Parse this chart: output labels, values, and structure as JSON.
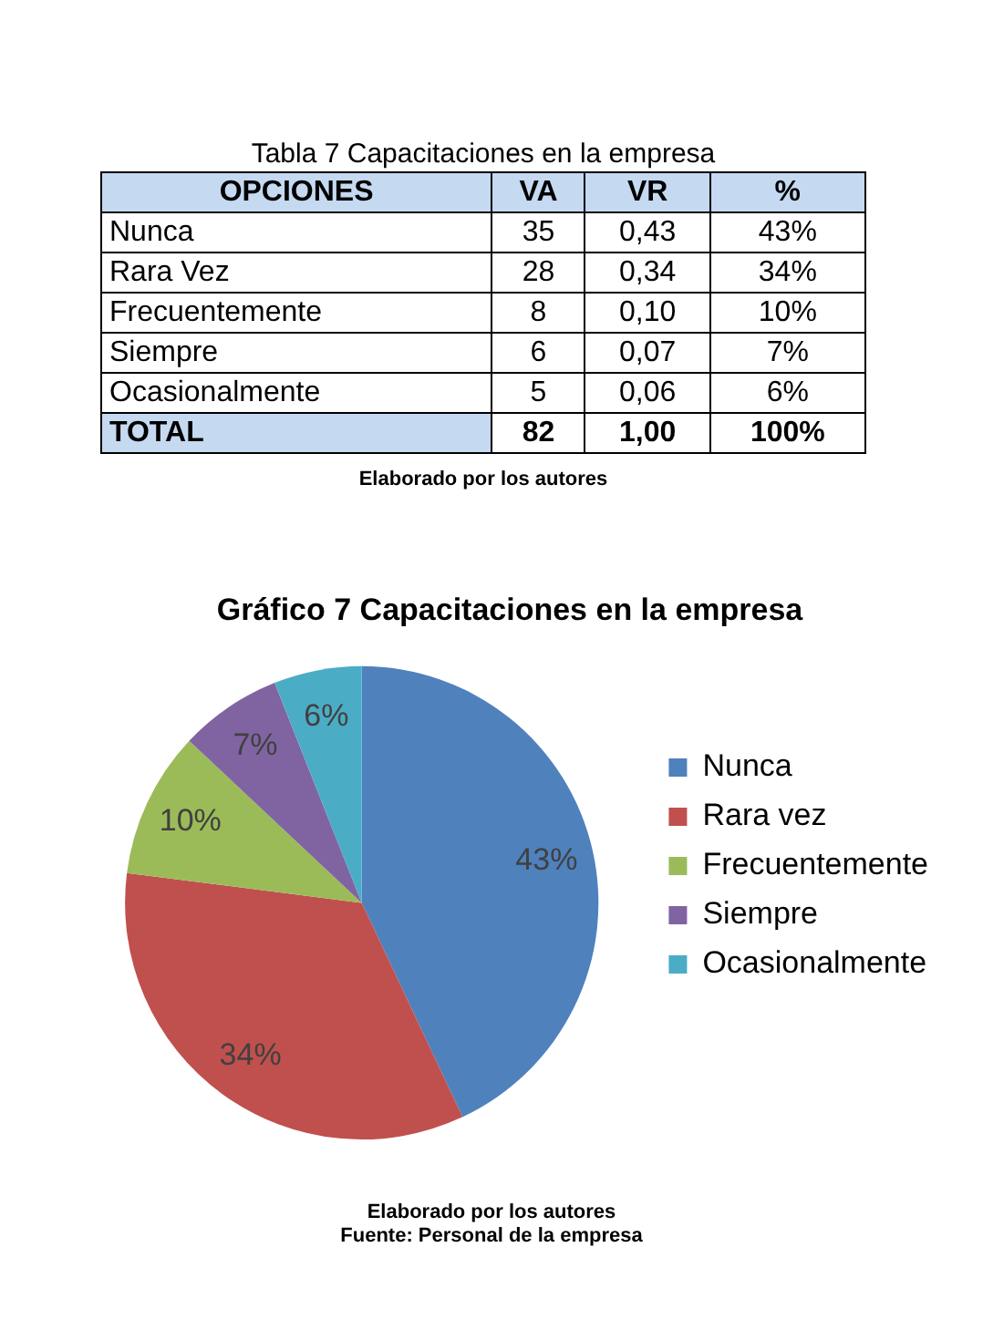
{
  "chart_data": [
    {
      "type": "other",
      "title": "Tabla 7 Capacitaciones en la empresa",
      "annotations": [
        "OPCIONES",
        "VA",
        "VR",
        "%",
        "Nunca",
        "35",
        "0,43",
        "43%",
        "Rara Vez",
        "28",
        "0,34",
        "34%",
        "Frecuentemente",
        "8",
        "0,10",
        "10%",
        "Siempre",
        "6",
        "0,07",
        "7%",
        "Ocasionalmente",
        "5",
        "0,06",
        "6%",
        "TOTAL",
        "82",
        "1,00",
        "100%",
        "Elaborado por los autores"
      ]
    },
    {
      "type": "pie",
      "title": "Gráfico 7 Capacitaciones en la empresa",
      "categories": [
        "Nunca",
        "Rara vez",
        "Frecuentemente",
        "Siempre",
        "Ocasionalmente"
      ],
      "values": [
        43,
        34,
        10,
        7,
        6
      ],
      "colors": [
        "#4f81bd",
        "#c0504d",
        "#9bbb59",
        "#8064a2",
        "#4bacc6"
      ],
      "value_labels": [
        "43%",
        "34%",
        "10%",
        "7%",
        "6%"
      ],
      "legend": "right",
      "annotations": [
        "Elaborado por los autores",
        "Fuente: Personal de la empresa"
      ]
    }
  ]
}
